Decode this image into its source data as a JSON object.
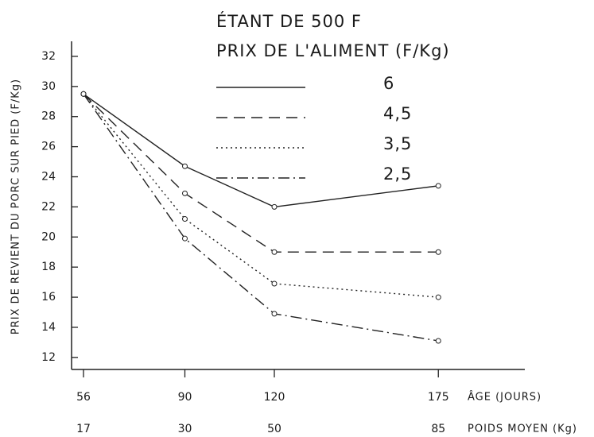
{
  "chart_data": {
    "type": "line",
    "legend_title": [
      "ÉTANT DE 500 F",
      "PRIX DE L'ALIMENT (F/Kg)"
    ],
    "y_label": "PRIX DE REVIENT DU PORC SUR PIED (F/Kg)",
    "x_label": "ÂGE (JOURS)",
    "x2_label": "POIDS MOYEN (Kg)",
    "x": [
      56,
      90,
      120,
      175
    ],
    "x2_labels": [
      "17",
      "30",
      "50",
      "85"
    ],
    "xlim": [
      52,
      204
    ],
    "xticks": [
      56,
      90,
      120,
      175
    ],
    "ylim": [
      11.2,
      33
    ],
    "yticks": [
      12,
      14,
      16,
      18,
      20,
      22,
      24,
      26,
      28,
      30,
      32
    ],
    "series": [
      {
        "name": "6",
        "color": "#222",
        "dash": "solid",
        "values": [
          29.5,
          24.7,
          22.0,
          23.4
        ]
      },
      {
        "name": "4,5",
        "color": "#222",
        "dash": "dashed",
        "values": [
          29.5,
          22.9,
          19.0,
          19.0
        ]
      },
      {
        "name": "3,5",
        "color": "#222",
        "dash": "dotted",
        "values": [
          29.5,
          21.2,
          16.9,
          16.0
        ]
      },
      {
        "name": "2,5",
        "color": "#222",
        "dash": "dashdot",
        "values": [
          29.5,
          19.9,
          14.9,
          13.1
        ]
      }
    ]
  }
}
